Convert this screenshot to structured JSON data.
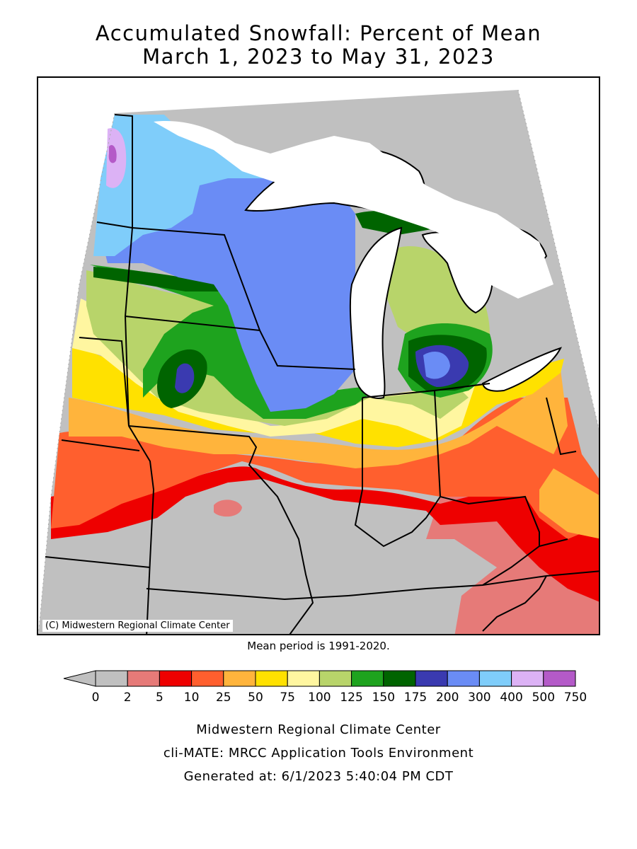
{
  "title": {
    "line1": "Accumulated Snowfall: Percent of Mean",
    "line2": "March 1, 2023 to May 31, 2023"
  },
  "map": {
    "copyright": "(C) Midwestern Regional Climate Center",
    "region": "Upper Midwest / Great Lakes",
    "features": [
      "state-borders",
      "great-lakes",
      "shaded-percent-of-mean-contours"
    ]
  },
  "mean_period": "Mean period is 1991-2020.",
  "legend": {
    "bins": [
      {
        "label": "0",
        "color": "#c0c0c0"
      },
      {
        "label": "2",
        "color": "#e67a78"
      },
      {
        "label": "5",
        "color": "#ee0000"
      },
      {
        "label": "10",
        "color": "#ff5f2e"
      },
      {
        "label": "25",
        "color": "#ffb43c"
      },
      {
        "label": "50",
        "color": "#ffe100"
      },
      {
        "label": "75",
        "color": "#fff6a0"
      },
      {
        "label": "100",
        "color": "#b8d46a"
      },
      {
        "label": "125",
        "color": "#1ea31e"
      },
      {
        "label": "150",
        "color": "#006400"
      },
      {
        "label": "175",
        "color": "#3a3ab0"
      },
      {
        "label": "200",
        "color": "#6a8cf5"
      },
      {
        "label": "300",
        "color": "#7fcdfa"
      },
      {
        "label": "400",
        "color": "#dcb2f5"
      },
      {
        "label": "500",
        "color": "#b45ac8"
      },
      {
        "label": "750",
        "color": ""
      }
    ]
  },
  "footer": {
    "line1": "Midwestern Regional Climate Center",
    "line2": "cli-MATE: MRCC Application Tools Environment",
    "line3": "Generated at: 6/1/2023 5:40:04 PM CDT"
  }
}
